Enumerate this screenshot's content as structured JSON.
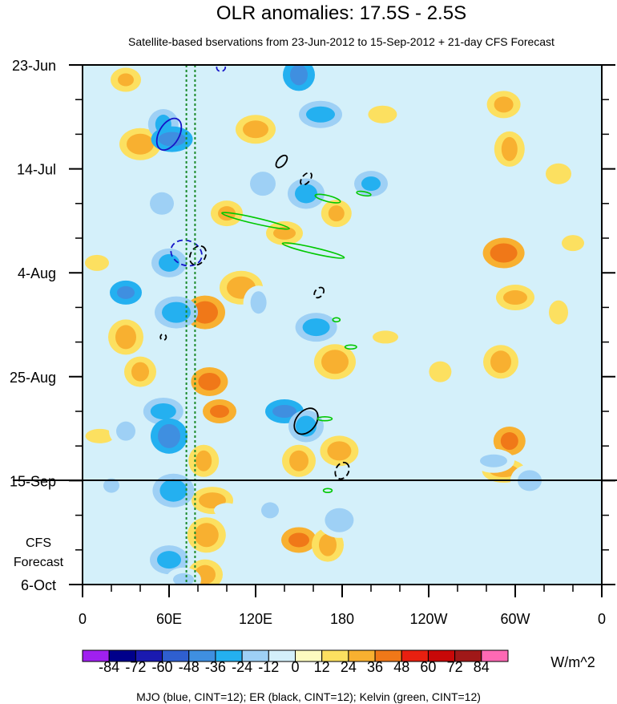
{
  "chart_data": {
    "type": "heatmap",
    "title": "OLR anomalies: 17.5S - 2.5S",
    "subtitle": "Satellite-based bservations from 23-Jun-2012 to 15-Sep-2012 + 21-day CFS Forecast",
    "x_range_deg": [
      0,
      360
    ],
    "x_ticks": [
      {
        "lon": 0,
        "label": "0"
      },
      {
        "lon": 60,
        "label": "60E"
      },
      {
        "lon": 120,
        "label": "120E"
      },
      {
        "lon": 180,
        "label": "180"
      },
      {
        "lon": 240,
        "label": "120W"
      },
      {
        "lon": 300,
        "label": "60W"
      },
      {
        "lon": 360,
        "label": "0"
      }
    ],
    "y_range_days": [
      0,
      105
    ],
    "y_ticks": [
      {
        "day": 0,
        "label": "23-Jun"
      },
      {
        "day": 21,
        "label": "14-Jul"
      },
      {
        "day": 42,
        "label": "4-Aug"
      },
      {
        "day": 63,
        "label": "25-Aug"
      },
      {
        "day": 84,
        "label": "15-Sep"
      },
      {
        "day": 105,
        "label": "6-Oct"
      }
    ],
    "forecast_start_day": 84,
    "forecast_label_line1": "CFS",
    "forecast_label_line2": "Forecast",
    "reference_lines_lon": [
      72,
      78
    ],
    "colorbar": {
      "levels": [
        "-84",
        "-72",
        "-60",
        "-48",
        "-36",
        "-24",
        "-12",
        "0",
        "12",
        "24",
        "36",
        "48",
        "60",
        "72",
        "84"
      ],
      "colors": [
        "#a020f0",
        "#00008b",
        "#1a1ab0",
        "#2f5fd0",
        "#3f8fe0",
        "#24b0f0",
        "#9ed0f5",
        "#d4f0fa",
        "#fdfbc0",
        "#fce060",
        "#f8b030",
        "#f07818",
        "#e82010",
        "#c80808",
        "#a01818",
        "#ff69b4"
      ],
      "unit": "W/m^2"
    },
    "footer": "MJO (blue, CINT=12); ER (black, CINT=12); Kelvin (green, CINT=12)",
    "filtered_contours": [
      {
        "kind": "MJO",
        "color": "#1515c8",
        "style": "solid",
        "lon": 60,
        "day": 14,
        "rx": 7,
        "ry": 3.5,
        "angle": 30
      },
      {
        "kind": "MJO",
        "color": "#1515c8",
        "style": "dashed",
        "lon": 72,
        "day": 38,
        "rx": 11,
        "ry": 2.5,
        "angle": 20
      },
      {
        "kind": "MJO",
        "color": "#1515c8",
        "style": "dashed",
        "lon": 96,
        "day": 0.5,
        "rx": 3,
        "ry": 0.8,
        "angle": -10
      },
      {
        "kind": "ER",
        "color": "#000000",
        "style": "solid",
        "lon": 138,
        "day": 19.5,
        "rx": 5,
        "ry": 0.8,
        "angle": -50
      },
      {
        "kind": "ER",
        "color": "#000000",
        "style": "dashed",
        "lon": 155,
        "day": 23,
        "rx": 5,
        "ry": 0.8,
        "angle": -50
      },
      {
        "kind": "ER",
        "color": "#000000",
        "style": "dashed",
        "lon": 80,
        "day": 38.5,
        "rx": 7,
        "ry": 1.5,
        "angle": -60
      },
      {
        "kind": "ER",
        "color": "#000000",
        "style": "dashed",
        "lon": 164,
        "day": 46,
        "rx": 4,
        "ry": 0.8,
        "angle": -50
      },
      {
        "kind": "ER",
        "color": "#000000",
        "style": "dashed",
        "lon": 56,
        "day": 55,
        "rx": 2,
        "ry": 0.6,
        "angle": -40
      },
      {
        "kind": "ER",
        "color": "#000000",
        "style": "solid",
        "lon": 155,
        "day": 72,
        "rx": 10,
        "ry": 2,
        "angle": -52
      },
      {
        "kind": "ER",
        "color": "#000000",
        "style": "dashed",
        "lon": 180,
        "day": 82,
        "rx": 6,
        "ry": 1.3,
        "angle": -63
      },
      {
        "kind": "Kelvin",
        "color": "#00c800",
        "style": "solid",
        "lon": 170,
        "day": 27,
        "rx": 9,
        "ry": 0.6,
        "angle": 14
      },
      {
        "kind": "Kelvin",
        "color": "#00c800",
        "style": "solid",
        "lon": 195,
        "day": 26,
        "rx": 5,
        "ry": 0.4,
        "angle": 10
      },
      {
        "kind": "Kelvin",
        "color": "#00c800",
        "style": "solid",
        "lon": 120,
        "day": 31.5,
        "rx": 24,
        "ry": 0.6,
        "angle": 13
      },
      {
        "kind": "Kelvin",
        "color": "#00c800",
        "style": "solid",
        "lon": 160,
        "day": 37.5,
        "rx": 22,
        "ry": 0.6,
        "angle": 13
      },
      {
        "kind": "Kelvin",
        "color": "#00c800",
        "style": "solid",
        "lon": 176,
        "day": 51.5,
        "rx": 2.5,
        "ry": 0.4,
        "angle": 0
      },
      {
        "kind": "Kelvin",
        "color": "#00c800",
        "style": "solid",
        "lon": 186,
        "day": 57,
        "rx": 4,
        "ry": 0.4,
        "angle": 0
      },
      {
        "kind": "Kelvin",
        "color": "#00c800",
        "style": "solid",
        "lon": 168,
        "day": 71.5,
        "rx": 5,
        "ry": 0.4,
        "angle": 0
      },
      {
        "kind": "Kelvin",
        "color": "#00c800",
        "style": "solid",
        "lon": 170,
        "day": 86,
        "rx": 3,
        "ry": 0.4,
        "angle": 0
      }
    ],
    "anomaly_blobs": [
      {
        "lon": 30,
        "day": 3,
        "value": 24
      },
      {
        "lon": 40,
        "day": 16,
        "value": 24
      },
      {
        "lon": 10,
        "day": 40,
        "value": 12
      },
      {
        "lon": 30,
        "day": 55,
        "value": 24
      },
      {
        "lon": 40,
        "day": 62,
        "value": 24
      },
      {
        "lon": 12,
        "day": 75,
        "value": 12
      },
      {
        "lon": 85,
        "day": 50,
        "value": 36
      },
      {
        "lon": 88,
        "day": 64,
        "value": 36
      },
      {
        "lon": 95,
        "day": 70,
        "value": 36
      },
      {
        "lon": 84,
        "day": 80,
        "value": 24
      },
      {
        "lon": 90,
        "day": 88,
        "value": 24
      },
      {
        "lon": 86,
        "day": 95,
        "value": 24
      },
      {
        "lon": 85,
        "day": 103,
        "value": 24
      },
      {
        "lon": 100,
        "day": 30,
        "value": 24
      },
      {
        "lon": 110,
        "day": 45,
        "value": 24
      },
      {
        "lon": 120,
        "day": 13,
        "value": 24
      },
      {
        "lon": 140,
        "day": 34,
        "value": 24
      },
      {
        "lon": 150,
        "day": 80,
        "value": 24
      },
      {
        "lon": 176,
        "day": 30,
        "value": 24
      },
      {
        "lon": 175,
        "day": 60,
        "value": 24
      },
      {
        "lon": 178,
        "day": 78,
        "value": 24
      },
      {
        "lon": 150,
        "day": 96,
        "value": 36
      },
      {
        "lon": 170,
        "day": 97,
        "value": 24
      },
      {
        "lon": 208,
        "day": 10,
        "value": 12
      },
      {
        "lon": 210,
        "day": 55,
        "value": 12
      },
      {
        "lon": 248,
        "day": 62,
        "value": 12
      },
      {
        "lon": 292,
        "day": 8,
        "value": 24
      },
      {
        "lon": 296,
        "day": 17,
        "value": 24
      },
      {
        "lon": 292,
        "day": 38,
        "value": 36
      },
      {
        "lon": 300,
        "day": 47,
        "value": 24
      },
      {
        "lon": 290,
        "day": 60,
        "value": 24
      },
      {
        "lon": 296,
        "day": 76,
        "value": 36
      },
      {
        "lon": 292,
        "day": 82,
        "value": 24
      },
      {
        "lon": 330,
        "day": 22,
        "value": 12
      },
      {
        "lon": 340,
        "day": 36,
        "value": 12
      },
      {
        "lon": 330,
        "day": 50,
        "value": 12
      },
      {
        "lon": 56,
        "day": 12,
        "value": -36
      },
      {
        "lon": 62,
        "day": 15,
        "value": -48
      },
      {
        "lon": 55,
        "day": 28,
        "value": -24
      },
      {
        "lon": 60,
        "day": 40,
        "value": -36
      },
      {
        "lon": 30,
        "day": 46,
        "value": -48
      },
      {
        "lon": 65,
        "day": 50,
        "value": -36
      },
      {
        "lon": 56,
        "day": 70,
        "value": -36
      },
      {
        "lon": 60,
        "day": 75,
        "value": -48
      },
      {
        "lon": 30,
        "day": 74,
        "value": -24
      },
      {
        "lon": 20,
        "day": 85,
        "value": -24
      },
      {
        "lon": 63,
        "day": 86,
        "value": -36
      },
      {
        "lon": 60,
        "day": 100,
        "value": -36
      },
      {
        "lon": 70,
        "day": 104,
        "value": -24
      },
      {
        "lon": 150,
        "day": 2,
        "value": -48
      },
      {
        "lon": 165,
        "day": 10,
        "value": -36
      },
      {
        "lon": 125,
        "day": 24,
        "value": -24
      },
      {
        "lon": 155,
        "day": 26,
        "value": -36
      },
      {
        "lon": 200,
        "day": 24,
        "value": -36
      },
      {
        "lon": 122,
        "day": 48,
        "value": -24
      },
      {
        "lon": 162,
        "day": 53,
        "value": -36
      },
      {
        "lon": 140,
        "day": 70,
        "value": -48
      },
      {
        "lon": 155,
        "day": 73,
        "value": -36
      },
      {
        "lon": 130,
        "day": 90,
        "value": -24
      },
      {
        "lon": 178,
        "day": 92,
        "value": -24
      },
      {
        "lon": 230,
        "day": 5,
        "value": -12
      },
      {
        "lon": 250,
        "day": 30,
        "value": -12
      },
      {
        "lon": 270,
        "day": 40,
        "value": -12
      },
      {
        "lon": 260,
        "day": 70,
        "value": -12
      },
      {
        "lon": 285,
        "day": 80,
        "value": -24
      },
      {
        "lon": 310,
        "day": 84,
        "value": -24
      },
      {
        "lon": 320,
        "day": 10,
        "value": -12
      },
      {
        "lon": 345,
        "day": 60,
        "value": -12
      },
      {
        "lon": 20,
        "day": 25,
        "value": -12
      },
      {
        "lon": 100,
        "day": 90,
        "value": -12
      }
    ]
  }
}
